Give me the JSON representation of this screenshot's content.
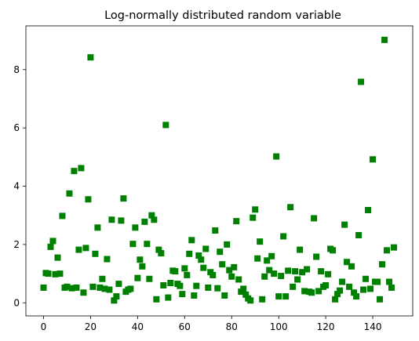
{
  "chart_data": {
    "type": "scatter",
    "title": "Log-normally distributed random variable",
    "xlabel": "",
    "ylabel": "",
    "xlim": [
      -7.5,
      157
    ],
    "ylim": [
      -0.45,
      9.5
    ],
    "xticks": [
      0,
      20,
      40,
      60,
      80,
      100,
      120,
      140
    ],
    "yticks": [
      0,
      2,
      4,
      6,
      8
    ],
    "grid": false,
    "marker": "square",
    "color": "#008000",
    "x": [
      0,
      1,
      2,
      3,
      4,
      5,
      6,
      7,
      8,
      9,
      10,
      11,
      12,
      13,
      14,
      15,
      16,
      17,
      18,
      19,
      20,
      21,
      22,
      23,
      24,
      25,
      26,
      27,
      28,
      29,
      30,
      31,
      32,
      33,
      34,
      35,
      36,
      37,
      38,
      39,
      40,
      41,
      42,
      43,
      44,
      45,
      46,
      47,
      48,
      49,
      50,
      51,
      52,
      53,
      54,
      55,
      56,
      57,
      58,
      59,
      60,
      61,
      62,
      63,
      64,
      65,
      66,
      67,
      68,
      69,
      70,
      71,
      72,
      73,
      74,
      75,
      76,
      77,
      78,
      79,
      80,
      81,
      82,
      83,
      84,
      85,
      86,
      87,
      88,
      89,
      90,
      91,
      92,
      93,
      94,
      95,
      96,
      97,
      98,
      99,
      100,
      101,
      102,
      103,
      104,
      105,
      106,
      107,
      108,
      109,
      110,
      111,
      112,
      113,
      114,
      115,
      116,
      117,
      118,
      119,
      120,
      121,
      122,
      123,
      124,
      125,
      126,
      127,
      128,
      129,
      130,
      131,
      132,
      133,
      134,
      135,
      136,
      137,
      138,
      139,
      140,
      141,
      142,
      143,
      144,
      145,
      146,
      147,
      148,
      149
    ],
    "y": [
      0.52,
      1.02,
      1.0,
      1.92,
      2.12,
      0.98,
      1.55,
      1.0,
      2.98,
      0.52,
      0.55,
      3.75,
      0.5,
      4.52,
      0.52,
      1.82,
      4.62,
      0.35,
      1.88,
      3.55,
      8.42,
      0.55,
      1.68,
      2.58,
      0.52,
      0.82,
      0.48,
      1.5,
      0.45,
      2.85,
      0.08,
      0.22,
      0.65,
      2.82,
      3.58,
      0.38,
      0.45,
      0.48,
      2.02,
      2.58,
      0.85,
      1.48,
      1.25,
      2.78,
      2.02,
      0.82,
      3.0,
      2.85,
      0.12,
      1.82,
      1.7,
      0.6,
      6.1,
      0.18,
      0.68,
      1.1,
      1.08,
      0.65,
      0.58,
      0.3,
      1.18,
      0.95,
      1.68,
      2.15,
      0.25,
      0.58,
      1.62,
      1.48,
      1.2,
      1.85,
      0.52,
      1.05,
      0.95,
      2.48,
      0.5,
      1.75,
      1.32,
      0.25,
      2.0,
      1.12,
      0.9,
      1.22,
      2.8,
      0.8,
      0.38,
      0.48,
      0.28,
      0.15,
      0.08,
      2.92,
      3.2,
      1.52,
      2.1,
      0.12,
      0.9,
      1.45,
      1.12,
      1.6,
      1.0,
      5.02,
      0.22,
      0.92,
      2.28,
      0.22,
      1.1,
      3.28,
      0.55,
      1.08,
      0.8,
      1.82,
      1.05,
      0.4,
      1.15,
      0.38,
      0.35,
      2.9,
      1.58,
      0.4,
      1.08,
      0.55,
      0.6,
      0.98,
      1.85,
      1.8,
      0.12,
      0.3,
      0.42,
      0.72,
      2.68,
      1.4,
      0.55,
      1.25,
      0.35,
      0.22,
      2.32,
      7.58,
      0.45,
      0.82,
      3.18,
      0.48,
      4.92,
      0.72,
      0.72,
      0.12,
      1.32,
      9.02,
      1.8,
      0.72,
      0.52,
      1.9
    ]
  }
}
